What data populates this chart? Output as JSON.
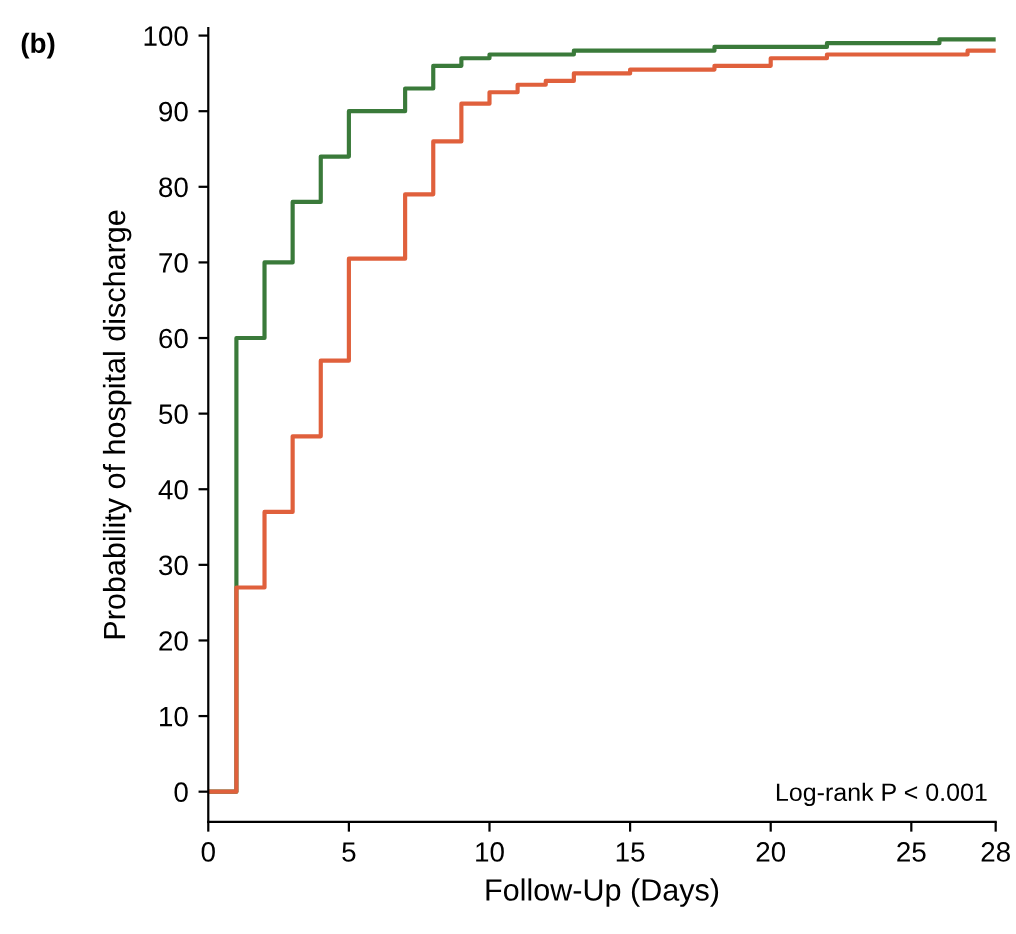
{
  "chart_data": {
    "type": "step",
    "xlabel": "Follow-Up (Days)",
    "ylabel": "Probability of hospital discharge",
    "annotations": [
      "(b)",
      "Log-rank P < 0.001"
    ],
    "series": [
      {
        "color": "#3a7a3a",
        "x": [
          0,
          1,
          2,
          3,
          4,
          5,
          7,
          8,
          9,
          10,
          13,
          18,
          22,
          26,
          28
        ],
        "values": [
          0,
          60,
          70,
          78,
          84,
          90,
          93,
          96,
          97,
          97.5,
          98,
          98.5,
          99,
          99.5,
          99.5
        ]
      },
      {
        "color": "#e0603c",
        "x": [
          0,
          1,
          2,
          3,
          4,
          5,
          7,
          8,
          9,
          10,
          11,
          12,
          13,
          15,
          18,
          20,
          22,
          27,
          28
        ],
        "values": [
          0,
          27,
          37,
          47,
          57,
          70.5,
          79,
          86,
          91,
          92.5,
          93.5,
          94,
          95,
          95.5,
          96,
          97,
          97.5,
          98,
          98
        ]
      }
    ],
    "xlim": [
      0,
      28
    ],
    "ylim": [
      -4,
      101
    ],
    "xticks": [
      0,
      5,
      10,
      15,
      20,
      25,
      28
    ],
    "yticks": [
      0,
      10,
      20,
      30,
      40,
      50,
      60,
      70,
      80,
      90,
      100
    ],
    "grid": false,
    "legend": false,
    "line_style": "solid"
  }
}
